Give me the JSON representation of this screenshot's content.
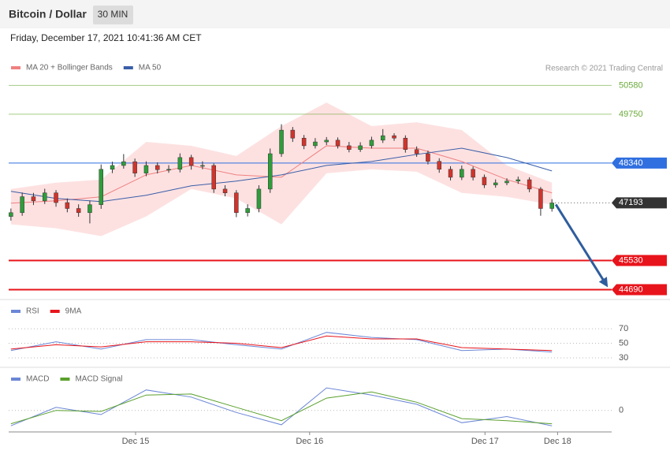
{
  "header": {
    "title": "Bitcoin / Dollar",
    "interval": "30 MIN",
    "timestamp": "Friday, December 17, 2021 10:41:36 AM CET",
    "credit": "Research © 2021 Trading Central"
  },
  "chart_data": [
    {
      "type": "candlestick",
      "up_color": "#2e9d3a",
      "down_color": "#d0342c",
      "xlim": [
        -0.2,
        53.3
      ],
      "xticks": [
        {
          "value": 11.06,
          "label": "Dec 15"
        },
        {
          "value": 26.5,
          "label": "Dec 16"
        },
        {
          "value": 42.06,
          "label": "Dec 17"
        },
        {
          "value": 48.5,
          "label": "Dec 18"
        }
      ],
      "ylim": [
        44450,
        50770
      ],
      "open": [
        46800,
        46910,
        47370,
        47250,
        47480,
        47200,
        47030,
        46910,
        47140,
        48160,
        48270,
        48380,
        48050,
        48270,
        48150,
        48160,
        48500,
        48270,
        48270,
        47590,
        47480,
        46910,
        47030,
        47590,
        48610,
        49290,
        49060,
        48840,
        48950,
        49000,
        48840,
        48730,
        48840,
        49000,
        49130,
        49060,
        48730,
        48610,
        48390,
        48160,
        47930,
        48160,
        47930,
        47710,
        47770,
        47820,
        47860,
        47590,
        47030
      ],
      "high": [
        47030,
        47490,
        47480,
        47600,
        47560,
        47320,
        47150,
        47260,
        48300,
        48380,
        48600,
        48470,
        48390,
        48360,
        48280,
        48620,
        48580,
        48390,
        48330,
        47700,
        47560,
        47150,
        47700,
        48760,
        49460,
        49380,
        49150,
        49060,
        49090,
        49080,
        48950,
        48940,
        49100,
        49320,
        49200,
        49140,
        48820,
        48700,
        48480,
        48250,
        48270,
        48240,
        48010,
        47870,
        47900,
        47950,
        47930,
        47650,
        47300
      ],
      "low": [
        46680,
        46820,
        47130,
        47160,
        47080,
        46920,
        46790,
        46600,
        47020,
        48050,
        48180,
        47940,
        47960,
        48040,
        48060,
        48070,
        48150,
        48160,
        47480,
        47380,
        46780,
        46800,
        46920,
        47480,
        48520,
        48950,
        48740,
        48760,
        48860,
        48760,
        48650,
        48660,
        48760,
        48920,
        48980,
        48640,
        48520,
        48300,
        48060,
        47840,
        47850,
        47840,
        47620,
        47630,
        47700,
        47740,
        47500,
        46820,
        46940
      ],
      "close": [
        46910,
        47370,
        47250,
        47480,
        47200,
        47030,
        46910,
        47140,
        48160,
        48270,
        48380,
        48050,
        48270,
        48150,
        48160,
        48500,
        48270,
        48270,
        47590,
        47480,
        46910,
        47030,
        47590,
        48610,
        49290,
        49060,
        48840,
        48950,
        49000,
        48840,
        48730,
        48840,
        49000,
        49130,
        49060,
        48730,
        48610,
        48390,
        48160,
        47930,
        48160,
        47930,
        47710,
        47770,
        47820,
        47860,
        47590,
        47030,
        47190
      ],
      "bands": {
        "color": "#fde1e1",
        "x": [
          0,
          4,
          8,
          12,
          16,
          20,
          24,
          28,
          32,
          36,
          40,
          44,
          48
        ],
        "upper": [
          47592,
          47774,
          47864,
          48952,
          48839,
          48544,
          49405,
          50085,
          49405,
          49518,
          49292,
          48272,
          47774
        ],
        "lower": [
          46572,
          46459,
          46233,
          46799,
          47592,
          47320,
          46572,
          48045,
          48159,
          48091,
          47479,
          47366,
          47139
        ]
      },
      "series": [
        {
          "name": "MA 20 + Bollinger Bands",
          "color": "#f08080",
          "x": [
            0,
            4,
            8,
            12,
            16,
            20,
            24,
            28,
            32,
            36,
            40,
            44,
            48
          ],
          "values": [
            47184,
            47252,
            47366,
            48000,
            48272,
            48000,
            47932,
            48839,
            48770,
            48770,
            48385,
            47864,
            47479
          ]
        },
        {
          "name": "MA 50",
          "color": "#3a5ea8",
          "x": [
            0,
            4,
            8,
            12,
            16,
            20,
            24,
            28,
            32,
            36,
            40,
            44,
            48
          ],
          "values": [
            47524,
            47320,
            47229,
            47411,
            47683,
            47819,
            48000,
            48272,
            48385,
            48589,
            48770,
            48499,
            48113
          ]
        }
      ],
      "levels": [
        {
          "value": 50580,
          "color": "#6aaa3a"
        },
        {
          "value": 49750,
          "color": "#6aaa3a"
        },
        {
          "value": 48340,
          "color": "#2f6fe0"
        },
        {
          "value": 47193,
          "color": "#333333"
        },
        {
          "value": 45530,
          "color": "#e8141b"
        },
        {
          "value": 44690,
          "color": "#e8141b"
        }
      ]
    },
    {
      "type": "line",
      "ylim": [
        18,
        107
      ],
      "yticks": [
        30,
        50,
        70
      ],
      "series": [
        {
          "name": "RSI",
          "color": "#6b86d6",
          "x": [
            0,
            4,
            8,
            12,
            16,
            20,
            24,
            28,
            32,
            36,
            40,
            44,
            48
          ],
          "values": [
            40,
            52,
            42,
            55,
            55,
            48,
            42,
            65,
            58,
            55,
            40,
            42,
            38
          ]
        },
        {
          "name": "9MA",
          "color": "#e8141b",
          "x": [
            0,
            4,
            8,
            12,
            16,
            20,
            24,
            28,
            32,
            36,
            40,
            44,
            48
          ],
          "values": [
            42,
            48,
            45,
            52,
            52,
            50,
            44,
            60,
            56,
            56,
            44,
            42,
            40
          ]
        }
      ]
    },
    {
      "type": "line",
      "ylim": [
        -210,
        390
      ],
      "yticks": [
        0
      ],
      "series": [
        {
          "name": "MACD",
          "color": "#6b86d6",
          "x": [
            0,
            4,
            8,
            12,
            16,
            20,
            24,
            28,
            32,
            36,
            40,
            44,
            48
          ],
          "values": [
            -150,
            30,
            -40,
            200,
            130,
            -20,
            -140,
            220,
            150,
            60,
            -120,
            -60,
            -150
          ]
        },
        {
          "name": "MACD Signal",
          "color": "#5aa02c",
          "x": [
            0,
            4,
            8,
            12,
            16,
            20,
            24,
            28,
            32,
            36,
            40,
            44,
            48
          ],
          "values": [
            -130,
            0,
            -10,
            150,
            160,
            30,
            -100,
            120,
            180,
            80,
            -80,
            -100,
            -130
          ]
        }
      ]
    }
  ]
}
